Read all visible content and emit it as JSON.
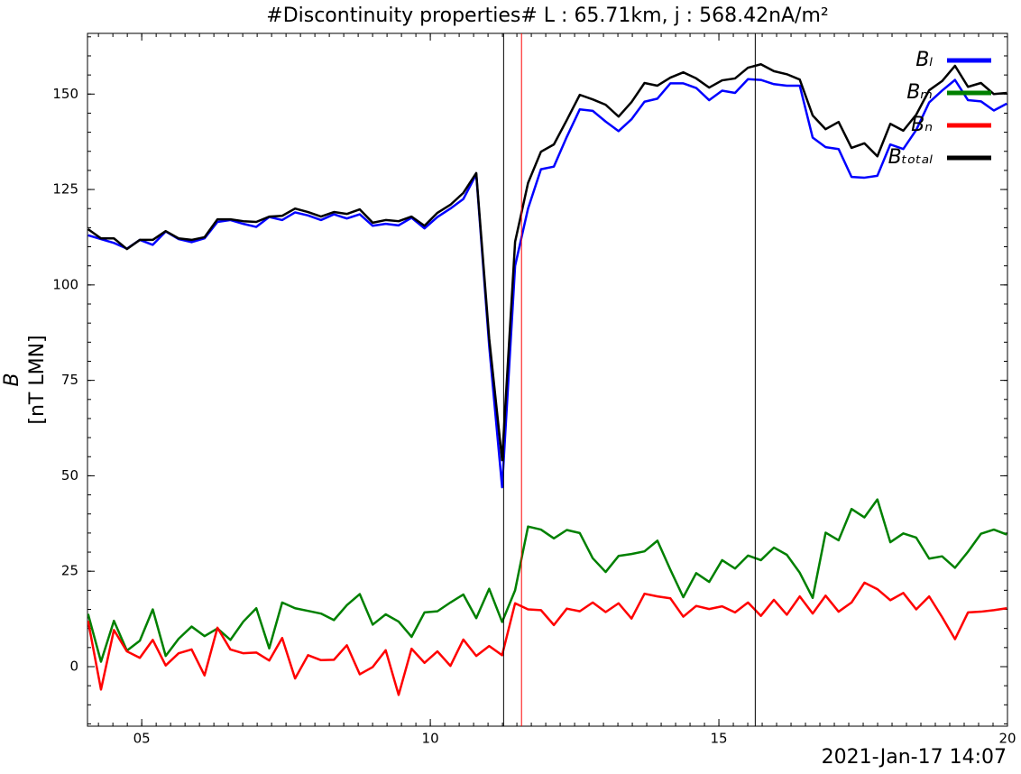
{
  "chart_data": {
    "type": "line",
    "title": "#Discontinuity properties# L : 65.71km, j : 568.42nA/m²",
    "ylabel": "B",
    "ylabel_units": "[nT LMN]",
    "footer": "2021-Jan-17 14:07",
    "xlim": [
      4.06,
      20.0
    ],
    "ylim": [
      -15.6,
      165.9
    ],
    "xticks": [
      {
        "value": 5,
        "label": "05"
      },
      10,
      15,
      20
    ],
    "yticks": [
      0,
      25,
      50,
      75,
      100,
      125,
      150
    ],
    "xminor": 0.25,
    "yminor": 5,
    "legend": "upper right",
    "x": [
      4.07,
      4.294,
      4.518,
      4.743,
      4.967,
      5.191,
      5.415,
      5.639,
      5.864,
      6.088,
      6.312,
      6.536,
      6.76,
      6.985,
      7.209,
      7.433,
      7.657,
      7.881,
      8.106,
      8.33,
      8.554,
      8.778,
      9.002,
      9.227,
      9.451,
      9.675,
      9.899,
      10.123,
      10.348,
      10.572,
      10.796,
      11.02,
      11.244,
      11.469,
      11.693,
      11.917,
      12.141,
      12.365,
      12.59,
      12.814,
      13.038,
      13.262,
      13.486,
      13.711,
      13.935,
      14.159,
      14.383,
      14.607,
      14.832,
      15.056,
      15.28,
      15.504,
      15.728,
      15.953,
      16.177,
      16.401,
      16.625,
      16.849,
      17.074,
      17.298,
      17.522,
      17.746,
      17.97,
      18.195,
      18.419,
      18.643,
      18.867,
      19.091,
      19.316,
      19.54,
      19.764,
      19.988
    ],
    "series": [
      {
        "name": "Bₗ",
        "color": "#0000ff",
        "values": [
          113.0,
          112.0,
          111.0,
          109.5,
          111.8,
          110.5,
          114.0,
          112.0,
          111.2,
          112.2,
          116.5,
          117.0,
          116.0,
          115.2,
          117.8,
          117.0,
          119.0,
          118.2,
          117.0,
          118.5,
          117.4,
          118.5,
          115.5,
          116.0,
          115.6,
          117.6,
          114.8,
          117.8,
          120.0,
          122.5,
          129.0,
          84.0,
          47.0,
          105.0,
          120.0,
          130.3,
          131.0,
          138.8,
          146.0,
          145.6,
          142.8,
          140.3,
          143.4,
          148.0,
          148.8,
          152.8,
          152.8,
          151.6,
          148.4,
          150.9,
          150.3,
          153.9,
          153.7,
          152.6,
          152.2,
          152.2,
          138.6,
          136.1,
          135.6,
          128.3,
          128.1,
          128.6,
          136.8,
          135.6,
          140.6,
          147.8,
          150.9,
          153.7,
          148.4,
          148.1,
          145.7,
          147.5
        ]
      },
      {
        "name": "Bₘ",
        "color": "#008000",
        "values": [
          13.8,
          1.3,
          12.0,
          4.2,
          6.8,
          15.0,
          2.8,
          7.3,
          10.5,
          8.0,
          10.0,
          7.0,
          11.8,
          15.3,
          4.8,
          16.8,
          15.3,
          14.6,
          13.9,
          12.2,
          16.1,
          19.0,
          11.0,
          13.7,
          11.8,
          7.8,
          14.2,
          14.5,
          16.8,
          18.9,
          12.7,
          20.4,
          11.7,
          20.0,
          36.7,
          35.9,
          33.6,
          35.8,
          35.0,
          28.4,
          24.8,
          29.0,
          29.5,
          30.2,
          33.0,
          25.4,
          18.2,
          24.5,
          22.2,
          27.9,
          25.7,
          29.1,
          27.9,
          31.2,
          29.3,
          24.6,
          18.0,
          35.1,
          33.1,
          41.3,
          39.1,
          43.8,
          32.6,
          34.9,
          33.8,
          28.3,
          28.9,
          25.9,
          30.1,
          34.8,
          35.9,
          34.6
        ]
      },
      {
        "name": "Bₙ",
        "color": "#ff0000",
        "values": [
          12.0,
          -6.0,
          9.6,
          4.0,
          2.3,
          7.0,
          0.3,
          3.5,
          4.5,
          -2.3,
          10.2,
          4.5,
          3.5,
          3.7,
          1.6,
          7.5,
          -3.1,
          3.0,
          1.7,
          1.8,
          5.6,
          -2.0,
          -0.1,
          4.3,
          -7.4,
          4.7,
          1.0,
          4.0,
          0.2,
          7.1,
          2.8,
          5.4,
          3.0,
          16.6,
          15.0,
          14.8,
          10.9,
          15.2,
          14.5,
          16.8,
          14.3,
          16.6,
          12.6,
          19.1,
          18.4,
          17.9,
          13.1,
          15.9,
          15.1,
          15.8,
          14.2,
          16.8,
          13.3,
          17.5,
          13.6,
          18.4,
          13.9,
          18.6,
          14.4,
          16.8,
          22.0,
          20.3,
          17.4,
          19.3,
          15.0,
          18.4,
          13.0,
          7.2,
          14.2,
          14.4,
          14.8,
          15.3
        ]
      },
      {
        "name": "Bₜₒₜₐₗ",
        "color": "#000000",
        "values": [
          114.6,
          112.2,
          112.2,
          109.4,
          111.8,
          111.8,
          114.1,
          112.2,
          111.8,
          112.5,
          117.2,
          117.2,
          116.7,
          116.5,
          117.9,
          118.1,
          120.0,
          119.1,
          117.9,
          119.1,
          118.6,
          119.8,
          116.3,
          117.0,
          116.7,
          117.9,
          115.5,
          118.9,
          121.0,
          124.1,
          129.3,
          86.0,
          54.1,
          111.3,
          126.7,
          134.9,
          136.8,
          143.2,
          149.8,
          148.6,
          147.2,
          144.1,
          147.9,
          152.9,
          152.2,
          154.3,
          155.7,
          154.1,
          151.7,
          153.6,
          154.1,
          156.9,
          157.8,
          156.0,
          155.2,
          153.8,
          144.4,
          140.8,
          142.7,
          135.9,
          137.1,
          133.7,
          142.2,
          140.4,
          144.6,
          151.0,
          153.4,
          157.4,
          151.9,
          152.9,
          150.0,
          150.3
        ]
      }
    ],
    "vlines": [
      {
        "x": 11.27,
        "color": "#000000"
      },
      {
        "x": 11.58,
        "color": "#ff0000"
      },
      {
        "x": 15.63,
        "color": "#000000"
      }
    ]
  }
}
